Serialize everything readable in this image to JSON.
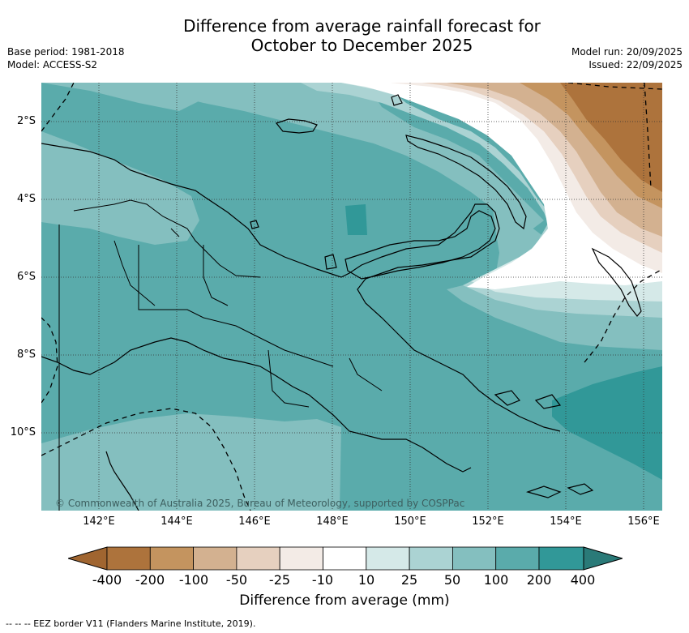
{
  "title_line1": "Difference from average rainfall forecast for",
  "title_line2": "October to December 2025",
  "base_period": "Base period: 1981-2018",
  "model": "Model: ACCESS-S2",
  "model_run": "Model run: 20/09/2025",
  "issued": "Issued: 22/09/2025",
  "latitude_labels": [
    "2°S",
    "4°S",
    "6°S",
    "8°S",
    "10°S"
  ],
  "longitude_labels": [
    "142°E",
    "144°E",
    "146°E",
    "148°E",
    "150°E",
    "152°E",
    "154°E",
    "156°E"
  ],
  "copyright": "© Commonwealth of Australia 2025, Bureau of Meteorology, supported by COSPPac",
  "colorbar": {
    "title": "Difference from average (mm)",
    "labels": [
      "-400",
      "-200",
      "-100",
      "-50",
      "-25",
      "-10",
      "10",
      "25",
      "50",
      "100",
      "200",
      "400"
    ],
    "colors": [
      "#a06530",
      "#ad733c",
      "#c4945f",
      "#d3b190",
      "#e6d0bf",
      "#f3ebe6",
      "#ffffff",
      "#d5e9e8",
      "#abd3d3",
      "#84bfbf",
      "#5aabab",
      "#319898",
      "#2a7a78"
    ]
  },
  "eez_note": "--  --  -- EEZ border V11 (Flanders Marine Institute, 2019)."
}
